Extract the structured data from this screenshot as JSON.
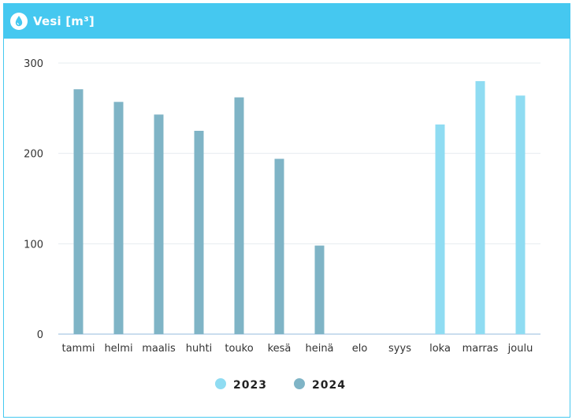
{
  "header": {
    "title": "Vesi [m³]",
    "icon": "water-drop-icon"
  },
  "colors": {
    "header": "#45c8f0",
    "series_2023": "#8fdcf2",
    "series_2024": "#7fb4c6",
    "grid": "#e6ecef",
    "baseline": "#b9d2e8"
  },
  "chart_data": {
    "type": "bar",
    "categories": [
      "tammi",
      "helmi",
      "maalis",
      "huhti",
      "touko",
      "kesä",
      "heinä",
      "elo",
      "syys",
      "loka",
      "marras",
      "joulu"
    ],
    "series": [
      {
        "name": "2023",
        "values": [
          null,
          null,
          null,
          null,
          null,
          null,
          null,
          null,
          null,
          232,
          280,
          264
        ]
      },
      {
        "name": "2024",
        "values": [
          271,
          257,
          243,
          225,
          262,
          194,
          98,
          null,
          null,
          null,
          null,
          null
        ]
      }
    ],
    "yticks": [
      0,
      100,
      200,
      300
    ],
    "ylim": [
      0,
      300
    ],
    "grid": true,
    "legend": "bottom-center"
  }
}
